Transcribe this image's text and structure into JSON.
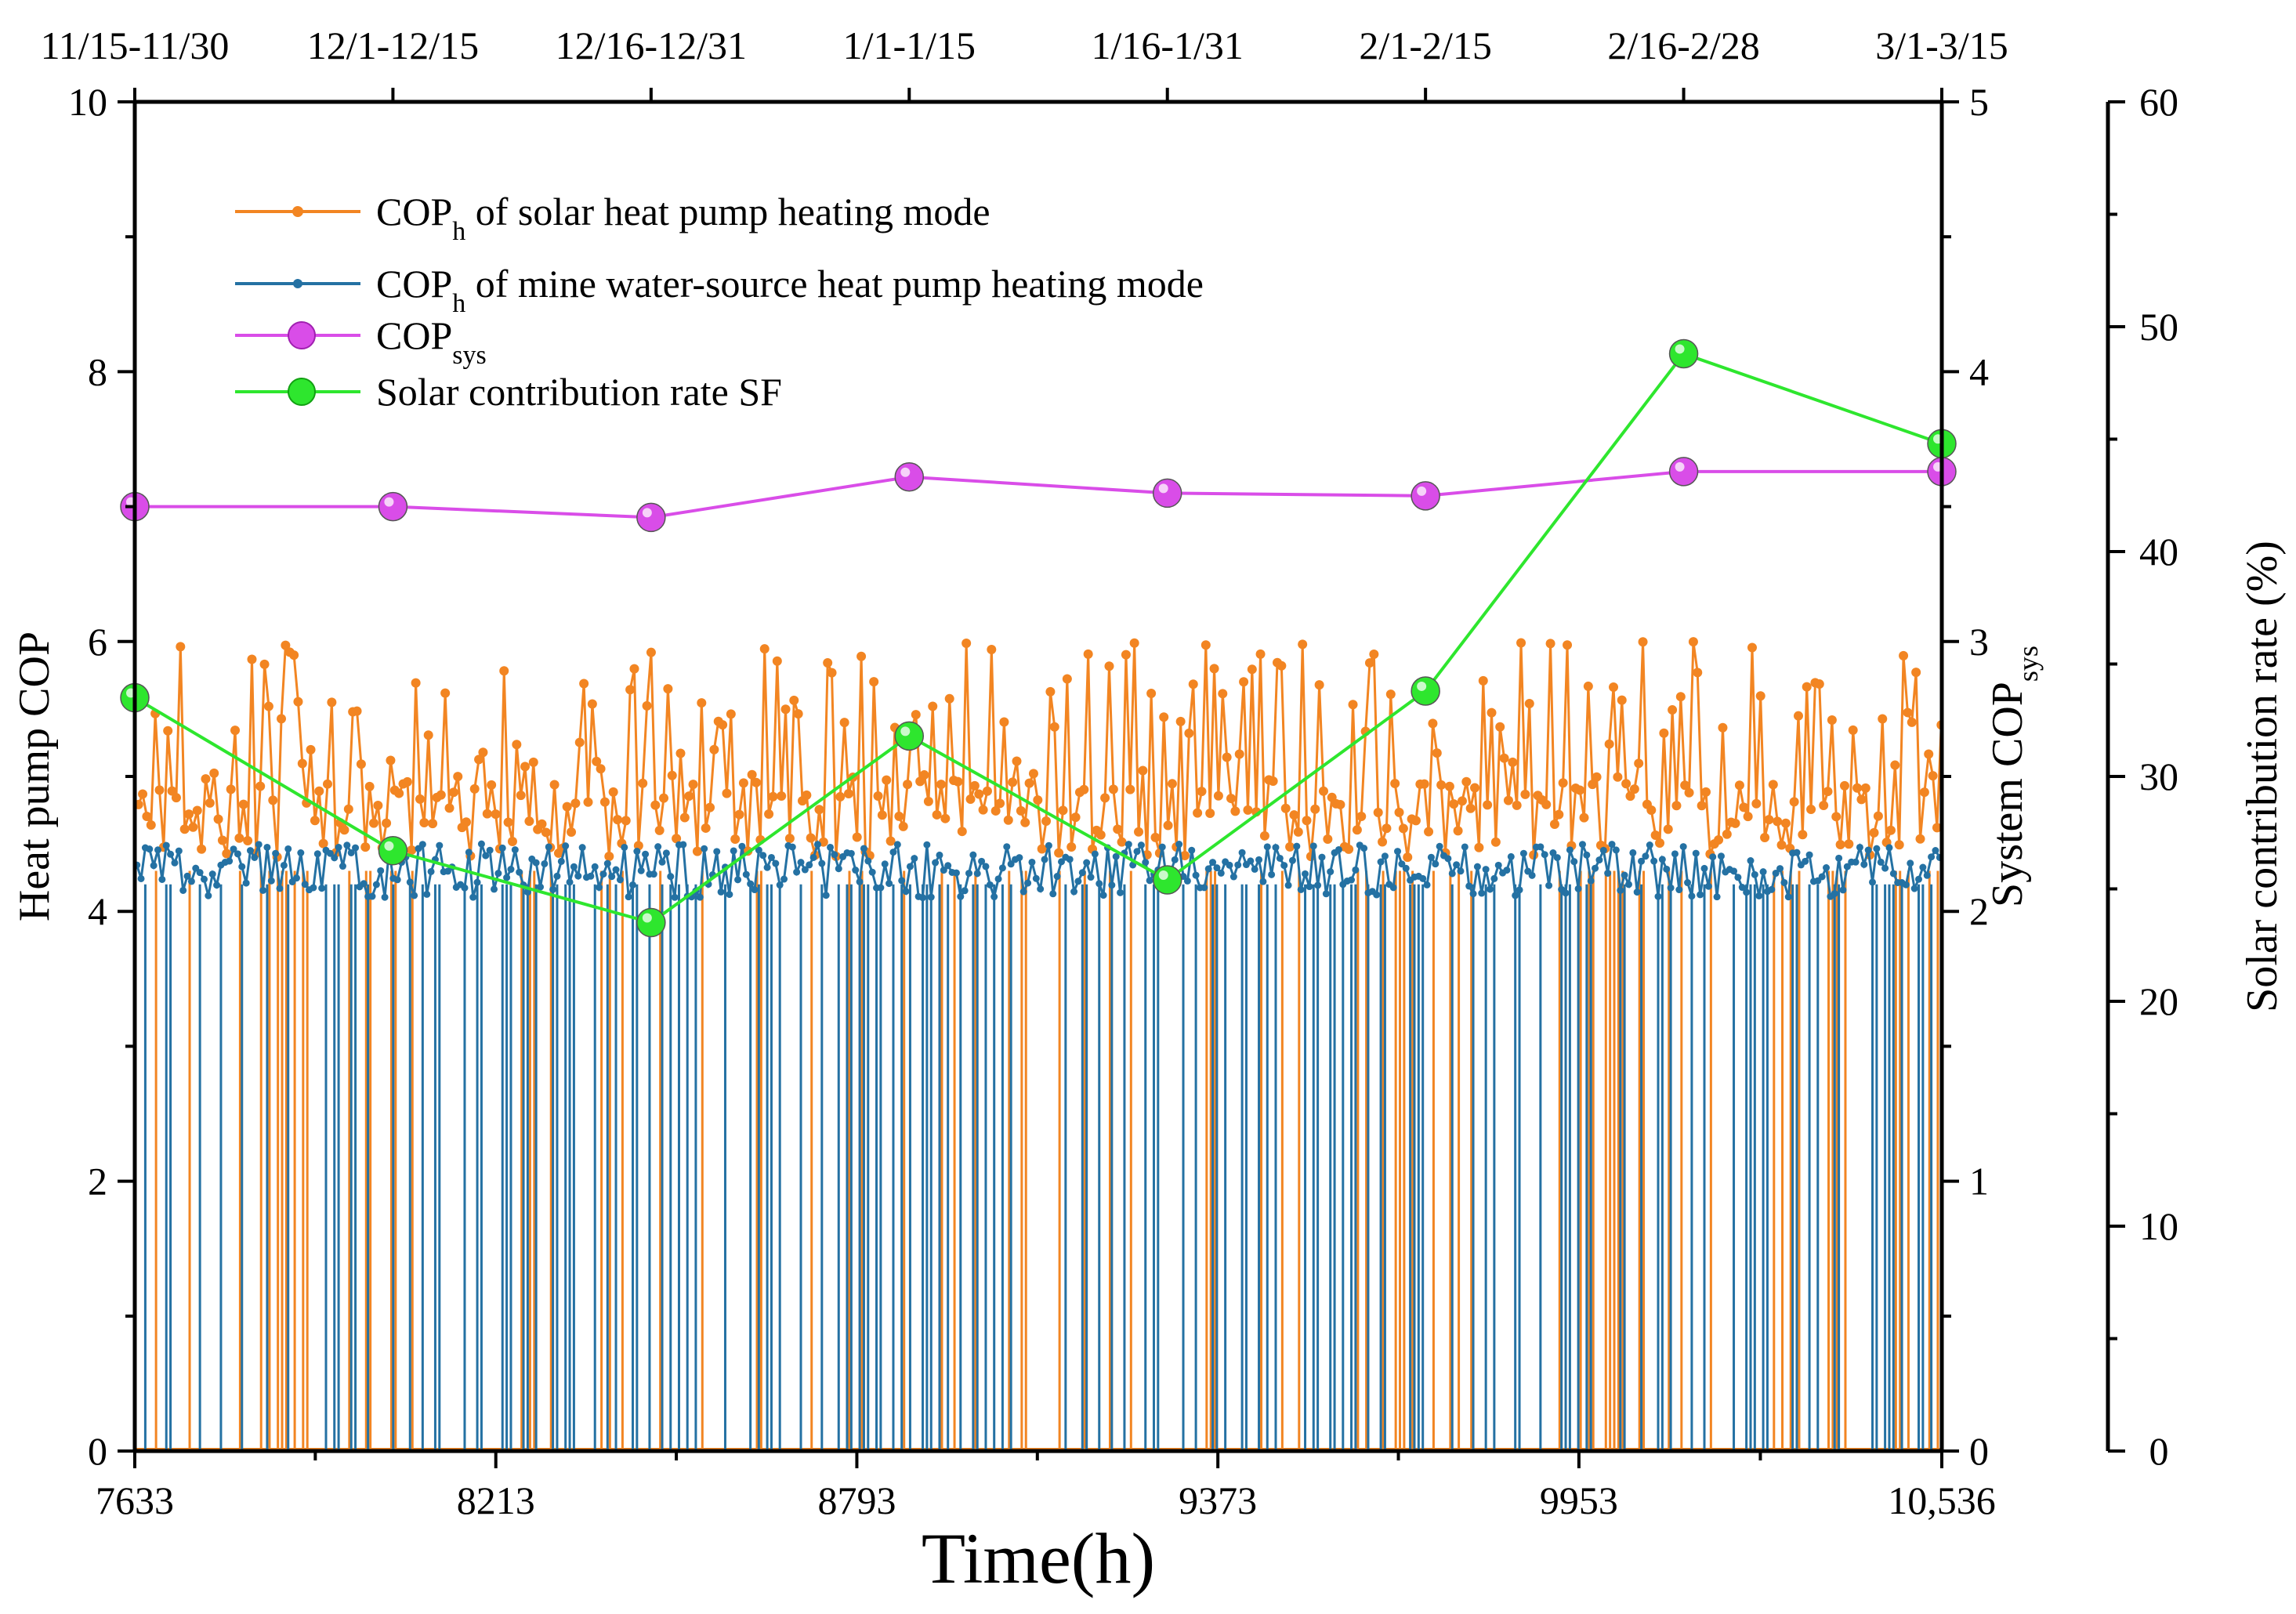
{
  "chart_data": {
    "type": "line",
    "x_axis": {
      "label": "Time(h)",
      "range": [
        7633,
        10536
      ],
      "tick_values": [
        7633,
        8213,
        8793,
        9373,
        9953,
        10536
      ],
      "tick_labels": [
        "7633",
        "8213",
        "8793",
        "9373",
        "9953",
        "10,536"
      ]
    },
    "top_axis": {
      "labels": [
        "11/15-11/30",
        "12/1-12/15",
        "12/16-12/31",
        "1/1-1/15",
        "1/16-1/31",
        "2/1-2/15",
        "2/16-2/28",
        "3/1-3/15"
      ]
    },
    "y_axes": {
      "left": {
        "label": "Heat pump COP",
        "range": [
          0,
          10
        ],
        "ticks": [
          0,
          2,
          4,
          6,
          8,
          10
        ]
      },
      "right1": {
        "label_main": "System COP",
        "label_sub": "sys",
        "range": [
          0,
          5
        ],
        "ticks": [
          0,
          1,
          2,
          3,
          4,
          5
        ]
      },
      "right2": {
        "label": "Solar contribution rate (%)",
        "range": [
          0,
          60
        ],
        "ticks": [
          0,
          10,
          20,
          30,
          40,
          50,
          60
        ]
      }
    },
    "legend_position": "top-left",
    "grid": false,
    "series": [
      {
        "name_main": "COP",
        "name_sub": "h",
        "name_rest": " of solar heat pump heating mode",
        "axis": "left",
        "color": "#f28522",
        "style": "small markers, vertical drops to 0",
        "typical_range": [
          4.2,
          6.0
        ]
      },
      {
        "name_main": "COP",
        "name_sub": "h",
        "name_rest": " of mine water-source heat pump heating mode",
        "axis": "left",
        "color": "#2471a3",
        "style": "small markers, vertical drops to 0",
        "typical_range": [
          4.1,
          4.5
        ]
      },
      {
        "name_main": "COP",
        "name_sub": "sys",
        "name_rest": "",
        "axis": "right1",
        "color": "#d94de8",
        "values": [
          3.5,
          3.5,
          3.46,
          3.61,
          3.55,
          3.54,
          3.63,
          3.63
        ]
      },
      {
        "name_main": "Solar contribution rate SF",
        "name_sub": "",
        "name_rest": "",
        "axis": "right2",
        "color": "#2ee62e",
        "values": [
          33.5,
          26.7,
          23.5,
          31.8,
          25.4,
          33.8,
          48.8,
          44.8
        ]
      }
    ]
  }
}
